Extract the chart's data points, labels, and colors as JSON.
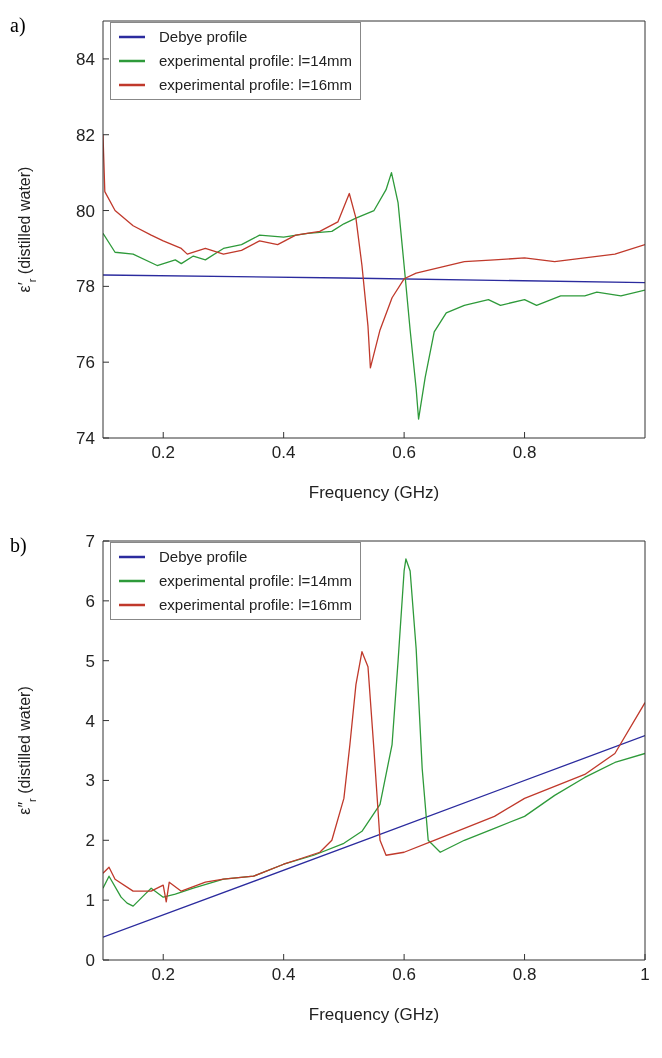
{
  "chart_data": [
    {
      "type": "line",
      "title": "a)",
      "xlabel": "Frequency (GHz)",
      "ylabel": "ε′$_{r}$ (distilled water)",
      "xlim": [
        0.1,
        1.0
      ],
      "xticks": [
        0.2,
        0.4,
        0.6,
        0.8
      ],
      "ylim": [
        74,
        85
      ],
      "yticks": [
        74,
        76,
        78,
        80,
        82,
        84
      ],
      "legend": "top left",
      "marker": "none",
      "line_style": "solid",
      "series": [
        {
          "name": "Debye profile",
          "color": "#2b2b9e",
          "x": [
            0.1,
            0.5,
            1.0
          ],
          "values": [
            78.3,
            78.22,
            78.1
          ]
        },
        {
          "name": "experimental profile: l=14mm",
          "color": "#2e9a3a",
          "x": [
            0.1,
            0.12,
            0.15,
            0.19,
            0.22,
            0.23,
            0.25,
            0.27,
            0.3,
            0.33,
            0.36,
            0.4,
            0.44,
            0.48,
            0.5,
            0.52,
            0.55,
            0.57,
            0.579,
            0.59,
            0.6,
            0.61,
            0.62,
            0.624,
            0.635,
            0.65,
            0.67,
            0.7,
            0.74,
            0.76,
            0.8,
            0.82,
            0.86,
            0.9,
            0.92,
            0.96,
            1.0
          ],
          "values": [
            79.4,
            78.9,
            78.85,
            78.55,
            78.7,
            78.6,
            78.8,
            78.7,
            79.0,
            79.1,
            79.35,
            79.3,
            79.4,
            79.45,
            79.65,
            79.8,
            80.0,
            80.55,
            81.0,
            80.2,
            78.55,
            76.85,
            75.3,
            74.5,
            75.6,
            76.8,
            77.3,
            77.5,
            77.65,
            77.5,
            77.65,
            77.5,
            77.75,
            77.75,
            77.85,
            77.75,
            77.9
          ]
        },
        {
          "name": "experimental profile: l=16mm",
          "color": "#c0392b",
          "x": [
            0.1,
            0.103,
            0.12,
            0.15,
            0.18,
            0.2,
            0.23,
            0.24,
            0.27,
            0.3,
            0.33,
            0.36,
            0.39,
            0.42,
            0.46,
            0.49,
            0.509,
            0.52,
            0.53,
            0.54,
            0.544,
            0.56,
            0.58,
            0.6,
            0.62,
            0.66,
            0.7,
            0.75,
            0.8,
            0.85,
            0.9,
            0.95,
            1.0
          ],
          "values": [
            82.0,
            80.5,
            80.0,
            79.6,
            79.35,
            79.2,
            79.0,
            78.85,
            79.0,
            78.85,
            78.95,
            79.2,
            79.1,
            79.35,
            79.45,
            79.7,
            80.45,
            79.8,
            78.55,
            76.95,
            75.85,
            76.85,
            77.7,
            78.2,
            78.35,
            78.5,
            78.65,
            78.7,
            78.75,
            78.65,
            78.75,
            78.85,
            79.1
          ]
        }
      ]
    },
    {
      "type": "line",
      "title": "b)",
      "xlabel": "Frequency (GHz)",
      "ylabel": "ε″$_{r}$ (distilled water)",
      "xlim": [
        0.1,
        1.0
      ],
      "xticks": [
        0.2,
        0.4,
        0.6,
        0.8,
        1
      ],
      "ylim": [
        0,
        7
      ],
      "yticks": [
        0,
        1,
        2,
        3,
        4,
        5,
        6,
        7
      ],
      "legend": "top left",
      "marker": "none",
      "line_style": "solid",
      "series": [
        {
          "name": "Debye profile",
          "color": "#2b2b9e",
          "x": [
            0.1,
            0.55,
            1.0
          ],
          "values": [
            0.38,
            2.06,
            3.75
          ]
        },
        {
          "name": "experimental profile: l=14mm",
          "color": "#2e9a3a",
          "x": [
            0.1,
            0.11,
            0.13,
            0.14,
            0.15,
            0.17,
            0.18,
            0.2,
            0.22,
            0.25,
            0.3,
            0.35,
            0.4,
            0.45,
            0.5,
            0.53,
            0.56,
            0.58,
            0.59,
            0.6,
            0.603,
            0.61,
            0.62,
            0.63,
            0.64,
            0.66,
            0.7,
            0.75,
            0.8,
            0.85,
            0.9,
            0.95,
            1.0
          ],
          "values": [
            1.2,
            1.4,
            1.05,
            0.95,
            0.9,
            1.1,
            1.2,
            1.05,
            1.1,
            1.2,
            1.35,
            1.4,
            1.6,
            1.75,
            1.95,
            2.15,
            2.6,
            3.6,
            5.0,
            6.5,
            6.7,
            6.5,
            5.2,
            3.2,
            2.0,
            1.8,
            2.0,
            2.2,
            2.4,
            2.75,
            3.05,
            3.3,
            3.45
          ]
        },
        {
          "name": "experimental profile: l=16mm",
          "color": "#c0392b",
          "x": [
            0.1,
            0.11,
            0.12,
            0.15,
            0.18,
            0.2,
            0.205,
            0.21,
            0.23,
            0.27,
            0.3,
            0.35,
            0.4,
            0.43,
            0.46,
            0.48,
            0.5,
            0.51,
            0.52,
            0.53,
            0.54,
            0.55,
            0.56,
            0.57,
            0.6,
            0.65,
            0.7,
            0.75,
            0.8,
            0.85,
            0.9,
            0.95,
            1.0
          ],
          "values": [
            1.45,
            1.55,
            1.35,
            1.15,
            1.15,
            1.25,
            0.97,
            1.3,
            1.15,
            1.3,
            1.35,
            1.4,
            1.6,
            1.7,
            1.8,
            2.0,
            2.7,
            3.6,
            4.6,
            5.15,
            4.9,
            3.5,
            2.0,
            1.75,
            1.8,
            2.0,
            2.2,
            2.4,
            2.7,
            2.9,
            3.1,
            3.45,
            4.3
          ]
        }
      ]
    }
  ]
}
